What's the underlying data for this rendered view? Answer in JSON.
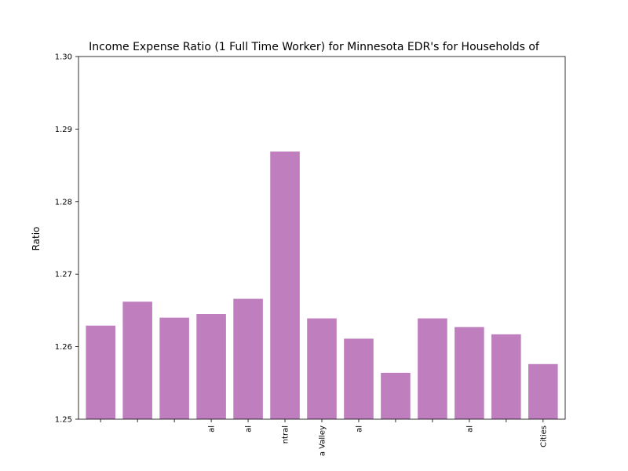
{
  "chart_data": {
    "type": "bar",
    "title": "Income Expense Ratio (1 Full Time Worker) for Minnesota EDR's for Households of",
    "xlabel": "",
    "ylabel": "Ratio",
    "ylim": [
      1.25,
      1.3
    ],
    "yticks": [
      "1.25",
      "1.26",
      "1.27",
      "1.28",
      "1.29",
      "1.30"
    ],
    "categories": [
      "",
      "",
      "",
      "al",
      "al",
      "ntral",
      "a Valley",
      "al",
      "",
      "",
      "al",
      "",
      "Cities"
    ],
    "values": [
      1.2629,
      1.2662,
      1.264,
      1.2645,
      1.2666,
      1.2869,
      1.2639,
      1.2611,
      1.2564,
      1.2639,
      1.2627,
      1.2617,
      1.2576
    ],
    "bar_color": "#bf7fbf",
    "grid": false,
    "legend": "none"
  }
}
